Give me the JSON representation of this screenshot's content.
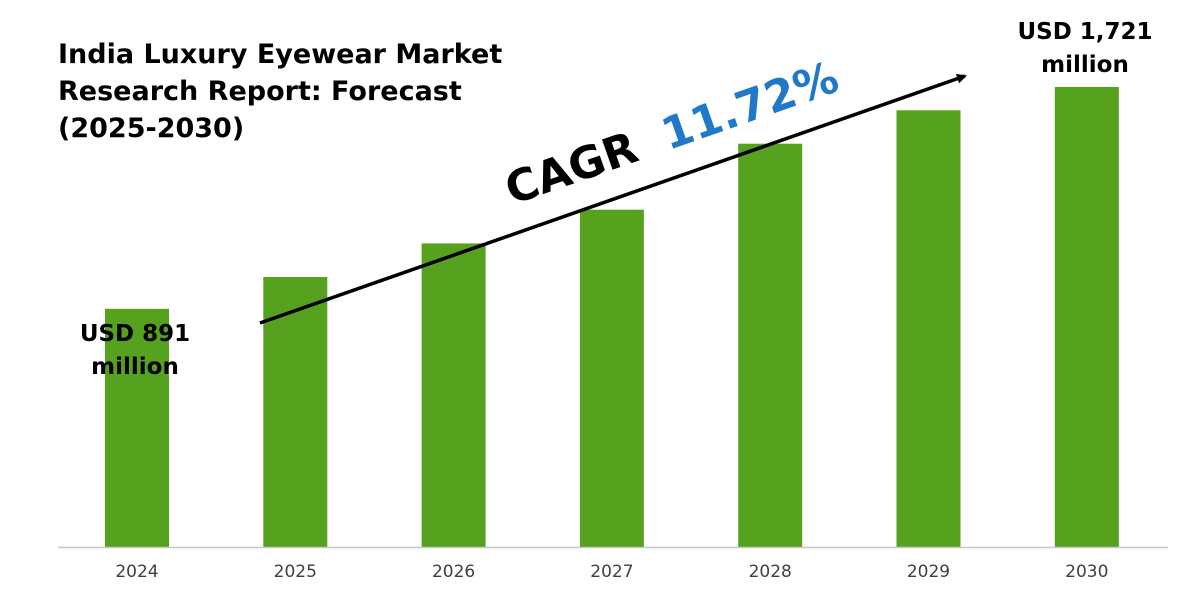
{
  "title_lines": [
    "India Luxury Eyewear Market",
    "Research Report: Forecast",
    "(2025-2030)"
  ],
  "cagr": {
    "label": "CAGR",
    "value": "11.72%"
  },
  "callouts": {
    "start": {
      "line1": "USD 891",
      "line2": "million"
    },
    "end": {
      "line1": "USD 1,721",
      "line2": "million"
    }
  },
  "colors": {
    "bar": "#56A21F",
    "cagr_value": "#1F78C8",
    "text": "#000000",
    "axis": "#C8C8C8",
    "tick": "#404040"
  },
  "chart_data": {
    "type": "bar",
    "title": "India Luxury Eyewear Market Research Report: Forecast (2025-2030)",
    "xlabel": "",
    "ylabel": "",
    "unit": "USD million",
    "categories": [
      "2024",
      "2025",
      "2026",
      "2027",
      "2028",
      "2029",
      "2030"
    ],
    "values": [
      891,
      1010,
      1136,
      1262,
      1509,
      1634,
      1721
    ],
    "ylim": [
      0,
      1721
    ],
    "grid": false,
    "legend": "none"
  }
}
